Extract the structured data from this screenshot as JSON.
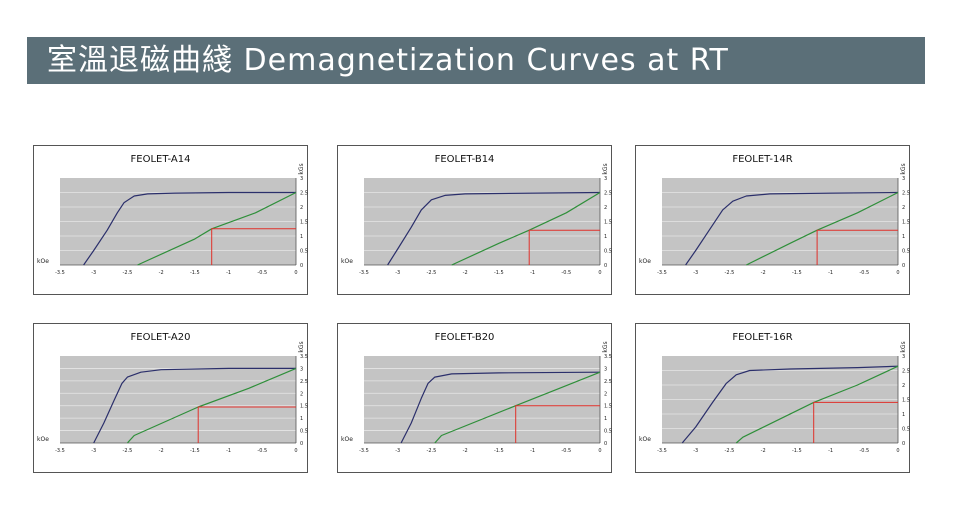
{
  "header": {
    "title": "室溫退磁曲綫   Demagnetization  Curves at RT"
  },
  "chart_data": [
    {
      "type": "line",
      "title": "FEOLET-A14",
      "xlabel": "kOe",
      "ylabel": "kGs",
      "xlim": [
        -3.5,
        0
      ],
      "ylim": [
        0,
        3
      ],
      "xticks": [
        "-3.5",
        "-3",
        "-2.5",
        "-2",
        "-1.5",
        "-1",
        "-0.5",
        "0"
      ],
      "yticks": [
        "0",
        "0.5",
        "1",
        "1.5",
        "2",
        "2.5",
        "3"
      ],
      "series": [
        {
          "color": "#2b2f6b",
          "points": [
            [
              -3.15,
              0
            ],
            [
              -3.0,
              0.5
            ],
            [
              -2.8,
              1.2
            ],
            [
              -2.65,
              1.8
            ],
            [
              -2.55,
              2.15
            ],
            [
              -2.4,
              2.38
            ],
            [
              -2.2,
              2.45
            ],
            [
              -1.8,
              2.48
            ],
            [
              -1.0,
              2.5
            ],
            [
              0,
              2.5
            ]
          ]
        },
        {
          "color": "#2f8f3a",
          "points": [
            [
              -2.35,
              0
            ],
            [
              -1.5,
              0.9
            ],
            [
              -1.25,
              1.25
            ],
            [
              -0.6,
              1.8
            ],
            [
              0,
              2.5
            ]
          ]
        },
        {
          "color": "#e0302a",
          "points": [
            [
              -1.25,
              0
            ],
            [
              -1.25,
              1.25
            ],
            [
              0,
              1.25
            ]
          ]
        }
      ]
    },
    {
      "type": "line",
      "title": "FEOLET-B14",
      "xlabel": "kOe",
      "ylabel": "kGs",
      "xlim": [
        -3.5,
        0
      ],
      "ylim": [
        0,
        3
      ],
      "xticks": [
        "-3.5",
        "-3",
        "-2.5",
        "-2",
        "-1.5",
        "-1",
        "-0.5",
        "0"
      ],
      "yticks": [
        "0",
        "0.5",
        "1",
        "1.5",
        "2",
        "2.5",
        "3"
      ],
      "series": [
        {
          "color": "#2b2f6b",
          "points": [
            [
              -3.15,
              0
            ],
            [
              -3.0,
              0.55
            ],
            [
              -2.8,
              1.3
            ],
            [
              -2.65,
              1.9
            ],
            [
              -2.5,
              2.25
            ],
            [
              -2.3,
              2.4
            ],
            [
              -2.0,
              2.45
            ],
            [
              -1.0,
              2.48
            ],
            [
              0,
              2.5
            ]
          ]
        },
        {
          "color": "#2f8f3a",
          "points": [
            [
              -2.2,
              0
            ],
            [
              -1.5,
              0.75
            ],
            [
              -1.05,
              1.2
            ],
            [
              -0.5,
              1.8
            ],
            [
              0,
              2.5
            ]
          ]
        },
        {
          "color": "#e0302a",
          "points": [
            [
              -1.05,
              0
            ],
            [
              -1.05,
              1.2
            ],
            [
              0,
              1.2
            ]
          ]
        }
      ]
    },
    {
      "type": "line",
      "title": "FEOLET-14R",
      "xlabel": "kOe",
      "ylabel": "kGs",
      "xlim": [
        -3.5,
        0
      ],
      "ylim": [
        0,
        3
      ],
      "xticks": [
        "-3.5",
        "-3",
        "-2.5",
        "-2",
        "-1.5",
        "-1",
        "-0.5",
        "0"
      ],
      "yticks": [
        "0",
        "0.5",
        "1",
        "1.5",
        "2",
        "2.5",
        "3"
      ],
      "series": [
        {
          "color": "#2b2f6b",
          "points": [
            [
              -3.15,
              0
            ],
            [
              -3.0,
              0.5
            ],
            [
              -2.8,
              1.2
            ],
            [
              -2.6,
              1.9
            ],
            [
              -2.45,
              2.2
            ],
            [
              -2.25,
              2.38
            ],
            [
              -1.9,
              2.45
            ],
            [
              -1.0,
              2.48
            ],
            [
              0,
              2.5
            ]
          ]
        },
        {
          "color": "#2f8f3a",
          "points": [
            [
              -2.25,
              0
            ],
            [
              -1.6,
              0.75
            ],
            [
              -1.2,
              1.2
            ],
            [
              -0.6,
              1.8
            ],
            [
              0,
              2.5
            ]
          ]
        },
        {
          "color": "#e0302a",
          "points": [
            [
              -1.2,
              0
            ],
            [
              -1.2,
              1.2
            ],
            [
              0,
              1.2
            ]
          ]
        }
      ]
    },
    {
      "type": "line",
      "title": "FEOLET-A20",
      "xlabel": "kOe",
      "ylabel": "kGs",
      "xlim": [
        -3.5,
        0
      ],
      "ylim": [
        0,
        3.5
      ],
      "xticks": [
        "-3.5",
        "-3",
        "-2.5",
        "-2",
        "-1.5",
        "-1",
        "-0.5",
        "0"
      ],
      "yticks": [
        "0",
        "0.5",
        "1",
        "1.5",
        "2",
        "2.5",
        "3",
        "3.5"
      ],
      "series": [
        {
          "color": "#2b2f6b",
          "points": [
            [
              -3.0,
              0
            ],
            [
              -2.85,
              0.8
            ],
            [
              -2.7,
              1.7
            ],
            [
              -2.58,
              2.4
            ],
            [
              -2.5,
              2.65
            ],
            [
              -2.3,
              2.85
            ],
            [
              -2.0,
              2.95
            ],
            [
              -1.0,
              3.0
            ],
            [
              0,
              3.0
            ]
          ]
        },
        {
          "color": "#2f8f3a",
          "points": [
            [
              -2.5,
              0
            ],
            [
              -2.4,
              0.3
            ],
            [
              -1.45,
              1.45
            ],
            [
              -0.7,
              2.2
            ],
            [
              0,
              3.0
            ]
          ]
        },
        {
          "color": "#e0302a",
          "points": [
            [
              -1.45,
              0
            ],
            [
              -1.45,
              1.45
            ],
            [
              0,
              1.45
            ]
          ]
        }
      ]
    },
    {
      "type": "line",
      "title": "FEOLET-B20",
      "xlabel": "kOe",
      "ylabel": "kGs",
      "xlim": [
        -3.5,
        0
      ],
      "ylim": [
        0,
        3.5
      ],
      "xticks": [
        "-3.5",
        "-3",
        "-2.5",
        "-2",
        "-1.5",
        "-1",
        "-0.5",
        "0"
      ],
      "yticks": [
        "0",
        "0.5",
        "1",
        "1.5",
        "2",
        "2.5",
        "3",
        "3.5"
      ],
      "series": [
        {
          "color": "#2b2f6b",
          "points": [
            [
              -2.95,
              0
            ],
            [
              -2.8,
              0.8
            ],
            [
              -2.65,
              1.8
            ],
            [
              -2.55,
              2.4
            ],
            [
              -2.45,
              2.65
            ],
            [
              -2.2,
              2.78
            ],
            [
              -1.5,
              2.82
            ],
            [
              0,
              2.85
            ]
          ]
        },
        {
          "color": "#2f8f3a",
          "points": [
            [
              -2.45,
              0
            ],
            [
              -2.35,
              0.3
            ],
            [
              -1.25,
              1.5
            ],
            [
              -0.6,
              2.2
            ],
            [
              0,
              2.85
            ]
          ]
        },
        {
          "color": "#e0302a",
          "points": [
            [
              -1.25,
              0
            ],
            [
              -1.25,
              1.5
            ],
            [
              0,
              1.5
            ]
          ]
        }
      ]
    },
    {
      "type": "line",
      "title": "FEOLET-16R",
      "xlabel": "kOe",
      "ylabel": "kGs",
      "xlim": [
        -3.5,
        0
      ],
      "ylim": [
        0,
        3
      ],
      "xticks": [
        "-3.5",
        "-3",
        "-2.5",
        "-2",
        "-1.5",
        "-1",
        "-0.5",
        "0"
      ],
      "yticks": [
        "0",
        "0.5",
        "1",
        "1.5",
        "2",
        "2.5",
        "3"
      ],
      "series": [
        {
          "color": "#2b2f6b",
          "points": [
            [
              -3.2,
              0
            ],
            [
              -3.0,
              0.55
            ],
            [
              -2.75,
              1.4
            ],
            [
              -2.55,
              2.05
            ],
            [
              -2.4,
              2.35
            ],
            [
              -2.2,
              2.5
            ],
            [
              -1.6,
              2.55
            ],
            [
              -0.6,
              2.6
            ],
            [
              0,
              2.65
            ]
          ]
        },
        {
          "color": "#2f8f3a",
          "points": [
            [
              -2.4,
              0
            ],
            [
              -2.3,
              0.2
            ],
            [
              -1.25,
              1.4
            ],
            [
              -0.6,
              2.0
            ],
            [
              0,
              2.65
            ]
          ]
        },
        {
          "color": "#e0302a",
          "points": [
            [
              -1.25,
              0
            ],
            [
              -1.25,
              1.4
            ],
            [
              0,
              1.4
            ]
          ]
        }
      ]
    }
  ]
}
